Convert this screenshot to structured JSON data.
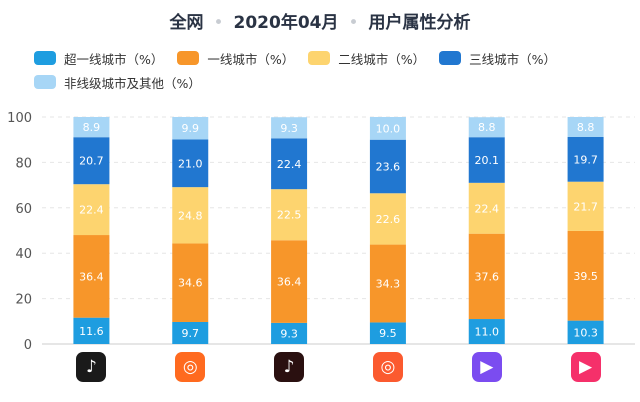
{
  "title": {
    "part1": "全网",
    "part2": "2020年04月",
    "part3": "用户属性分析",
    "separator": "•"
  },
  "chart_data": {
    "type": "bar",
    "stacked": true,
    "title": "全网 • 2020年04月 • 用户属性分析",
    "categories": [
      "抖音",
      "快手",
      "抖音火山版",
      "快手极速版",
      "微视",
      "好看视频"
    ],
    "ylim": [
      0,
      100
    ],
    "yticks": [
      "0",
      "20",
      "40",
      "60",
      "80",
      "100"
    ],
    "legend_position": "top-left",
    "series": [
      {
        "name": "超一线城市（%）",
        "color": "#1e9de0",
        "values": [
          11.6,
          9.7,
          9.3,
          9.5,
          11.0,
          10.3
        ]
      },
      {
        "name": "一线城市（%）",
        "color": "#f7962a",
        "values": [
          36.4,
          34.6,
          36.4,
          34.3,
          37.6,
          39.5
        ]
      },
      {
        "name": "二线城市（%）",
        "color": "#fdd46f",
        "values": [
          22.4,
          24.8,
          22.5,
          22.6,
          22.4,
          21.7
        ]
      },
      {
        "name": "三线城市（%）",
        "color": "#2177d0",
        "values": [
          20.7,
          21.0,
          22.4,
          23.6,
          20.1,
          19.7
        ]
      },
      {
        "name": "非线级城市及其他（%）",
        "color": "#a7d6f6",
        "values": [
          8.9,
          9.9,
          9.3,
          10.0,
          8.8,
          8.8
        ]
      }
    ]
  },
  "app_icons": [
    {
      "name": "douyin-icon",
      "glyph": "♪",
      "color": "#1a1a1a"
    },
    {
      "name": "kuaishou-icon",
      "glyph": "◎",
      "color": "#ff6a1f"
    },
    {
      "name": "huoshan-icon",
      "glyph": "♪",
      "color": "#2a1010"
    },
    {
      "name": "kuaishou-lite-icon",
      "glyph": "◎",
      "color": "#fb5a2f"
    },
    {
      "name": "weishi-icon",
      "glyph": "▶",
      "color": "#7b4cf0"
    },
    {
      "name": "haokan-icon",
      "glyph": "▶",
      "color": "#f5306a"
    }
  ]
}
